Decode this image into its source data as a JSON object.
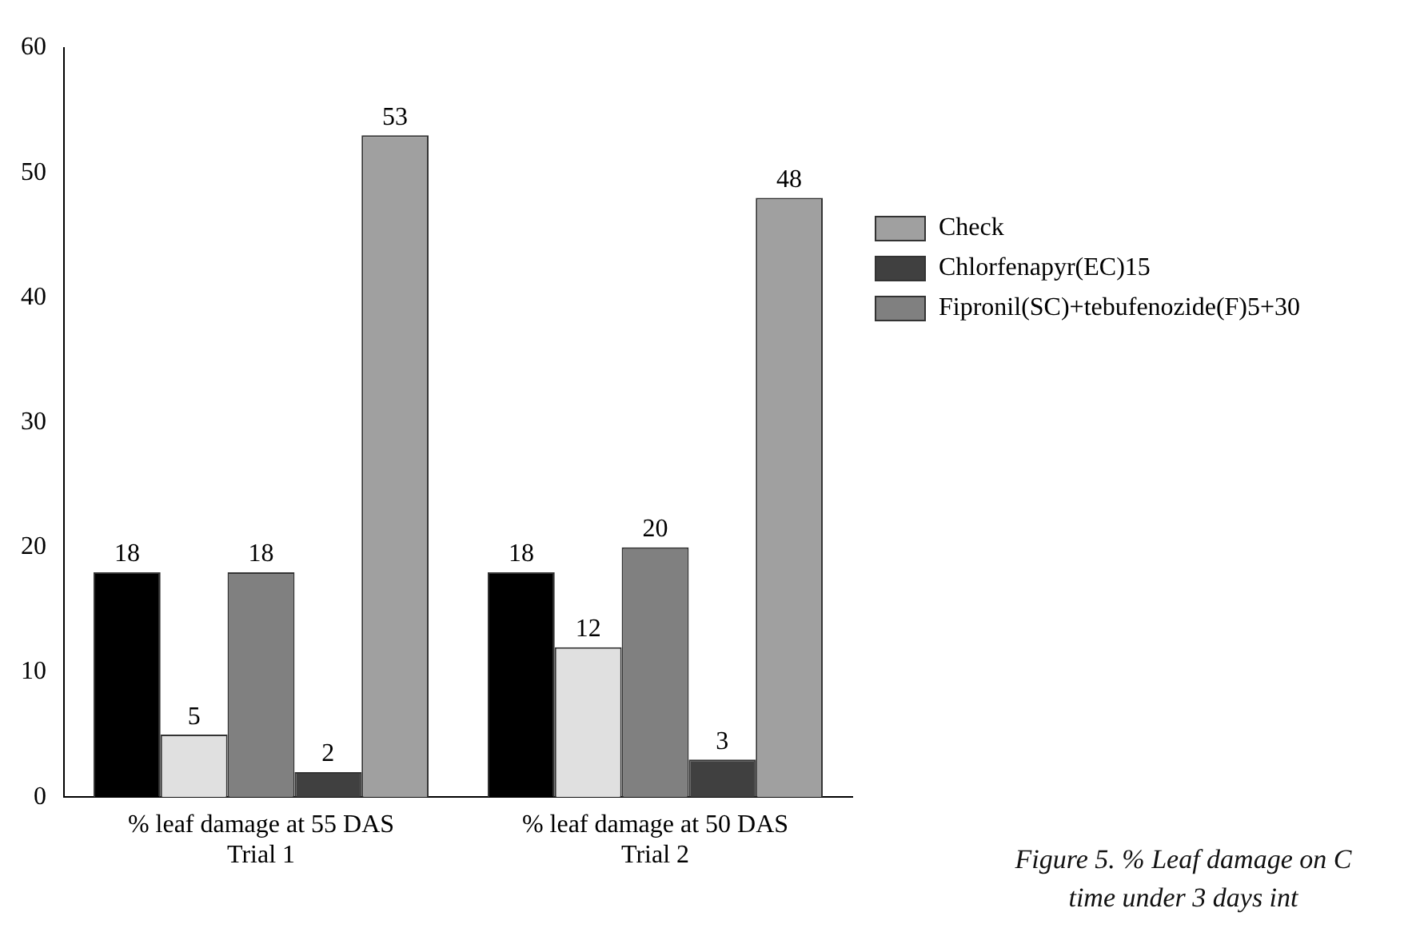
{
  "chart_data": {
    "type": "bar",
    "categories": [
      "% leaf damage at 55 DAS\nTrial 1",
      "% leaf damage at 50 DAS\nTrial 2"
    ],
    "series": [
      {
        "color": "#000000",
        "values": [
          18,
          18
        ]
      },
      {
        "color": "#e0e0e0",
        "values": [
          5,
          12
        ]
      },
      {
        "name": "Fipronil(SC)+tebufenozide(F)5+30",
        "color": "#808080",
        "values": [
          18,
          20
        ]
      },
      {
        "name": "Chlorfenapyr(EC)15",
        "color": "#404040",
        "values": [
          2,
          3
        ]
      },
      {
        "name": "Check",
        "color": "#a0a0a0",
        "values": [
          53,
          48
        ]
      }
    ],
    "ylim": [
      0,
      60
    ],
    "yticks": [
      0,
      10,
      20,
      30,
      40,
      50,
      60
    ],
    "grid": false,
    "legend": "right",
    "data_labels": true,
    "annotations": [
      "Figure 5. % Leaf damage on C",
      "time under 3 days int"
    ]
  }
}
